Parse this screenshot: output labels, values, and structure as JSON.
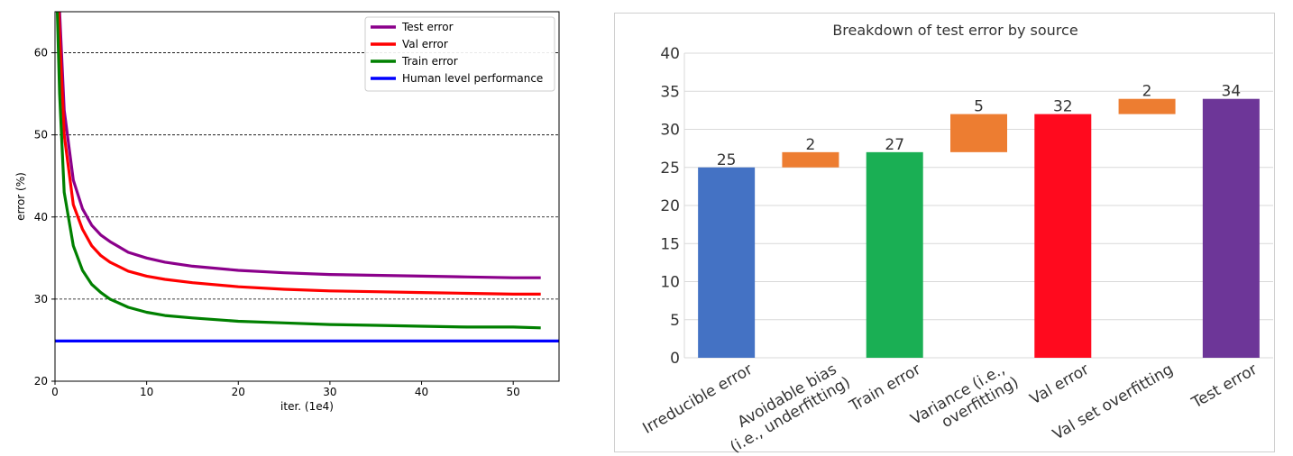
{
  "chart_data": [
    {
      "type": "line",
      "xlabel": "iter. (1e4)",
      "ylabel": "error (%)",
      "xlim": [
        0,
        55
      ],
      "ylim": [
        20,
        65
      ],
      "xticks": [
        "0",
        "10",
        "20",
        "30",
        "40",
        "50"
      ],
      "yticks": [
        "20",
        "30",
        "40",
        "50",
        "60"
      ],
      "grid": "horizontal dashed",
      "legend": "top-right",
      "x": [
        0,
        0.5,
        1,
        2,
        3,
        4,
        5,
        6,
        8,
        10,
        12,
        15,
        20,
        25,
        30,
        35,
        40,
        45,
        50,
        53
      ],
      "series": [
        {
          "name": "Test error",
          "color": "#8b008b",
          "values": [
            80,
            65,
            53,
            44.5,
            41,
            39,
            37.8,
            37,
            35.7,
            35,
            34.5,
            34,
            33.5,
            33.2,
            33,
            32.9,
            32.8,
            32.7,
            32.6,
            32.6
          ]
        },
        {
          "name": "Val error",
          "color": "#ff0000",
          "values": [
            78,
            62,
            50,
            41.5,
            38.5,
            36.5,
            35.3,
            34.5,
            33.4,
            32.8,
            32.4,
            32,
            31.5,
            31.2,
            31,
            30.9,
            30.8,
            30.7,
            30.6,
            30.6
          ]
        },
        {
          "name": "Train error",
          "color": "#008000",
          "values": [
            75,
            55,
            43,
            36.5,
            33.5,
            31.8,
            30.8,
            30,
            29,
            28.4,
            28,
            27.7,
            27.3,
            27.1,
            26.9,
            26.8,
            26.7,
            26.6,
            26.6,
            26.5
          ]
        },
        {
          "name": "Human level performance",
          "color": "#0000ff",
          "constant": 24.9
        }
      ]
    },
    {
      "type": "bar",
      "title": "Breakdown of test error by source",
      "ylim": [
        0,
        40
      ],
      "yticks": [
        "0",
        "5",
        "10",
        "15",
        "20",
        "25",
        "30",
        "35",
        "40"
      ],
      "grid": "horizontal",
      "categories": [
        [
          "Irreducible error"
        ],
        [
          "Avoidable bias",
          "(i.e., underfitting)"
        ],
        [
          "Train error"
        ],
        [
          "Variance (i.e.,",
          "overfitting)"
        ],
        [
          "Val error"
        ],
        [
          "Val set overfitting"
        ],
        [
          "Test error"
        ]
      ],
      "bars": [
        {
          "bottom": 0,
          "top": 25,
          "label": "25",
          "color": "#4472c4"
        },
        {
          "bottom": 25,
          "top": 27,
          "label": "2",
          "color": "#ed7d31"
        },
        {
          "bottom": 0,
          "top": 27,
          "label": "27",
          "color": "#1aaf54"
        },
        {
          "bottom": 27,
          "top": 32,
          "label": "5",
          "color": "#ed7d31"
        },
        {
          "bottom": 0,
          "top": 32,
          "label": "32",
          "color": "#ff0a1e"
        },
        {
          "bottom": 32,
          "top": 34,
          "label": "2",
          "color": "#ed7d31"
        },
        {
          "bottom": 0,
          "top": 34,
          "label": "34",
          "color": "#6d3698"
        }
      ]
    }
  ]
}
